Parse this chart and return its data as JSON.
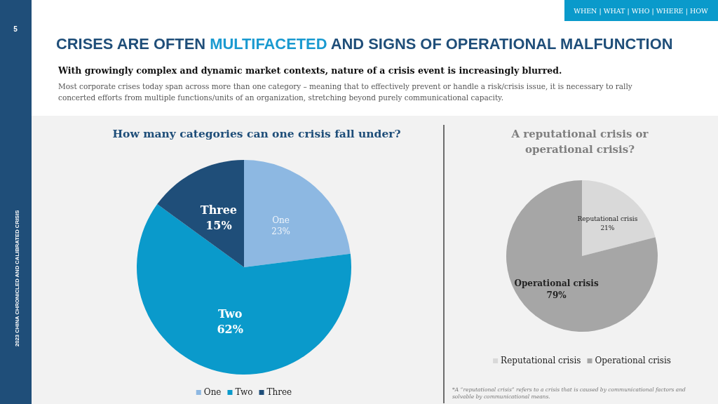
{
  "chart_data": [
    {
      "type": "pie",
      "title": "How many categories can one crisis fall under?",
      "categories": [
        "One",
        "Two",
        "Three"
      ],
      "values": [
        23,
        62,
        15
      ],
      "colors": [
        "#8db8e2",
        "#0a9acb",
        "#1f4e79"
      ],
      "value_labels": [
        "23%",
        "62%",
        "15%"
      ],
      "data_labels": true,
      "legend": "bottom",
      "annotations": [
        "5",
        "WHEN | WHAT | WHO | WHERE | HOW",
        "CRISES ARE OFTEN ",
        "MULTIFACETED",
        " AND SIGNS OF OPERATIONAL MALFUNCTION",
        "With growingly complex and dynamic market contexts, nature of a crisis event is increasingly blurred.",
        "Most corporate crises today span across more than one category – meaning that to effectively prevent or handle a risk/crisis issue, it is necessary to rally concerted efforts from multiple functions/units of an organization, stretching beyond purely communicational capacity.",
        "2023 CHINA CHRONICLED AND CALIBRATED CRISIS"
      ]
    },
    {
      "type": "pie",
      "title": "A reputational crisis or operational crisis?",
      "categories": [
        "Reputational crisis",
        "Operational crisis"
      ],
      "values": [
        21,
        79
      ],
      "colors": [
        "#d9d9d9",
        "#a6a6a6"
      ],
      "value_labels": [
        "21%",
        "79%"
      ],
      "data_labels": true,
      "legend": "bottom",
      "annotations": [
        "*A “reputational crisis” refers to a crisis that is caused by communicational factors and solvable by communicational means."
      ]
    }
  ]
}
